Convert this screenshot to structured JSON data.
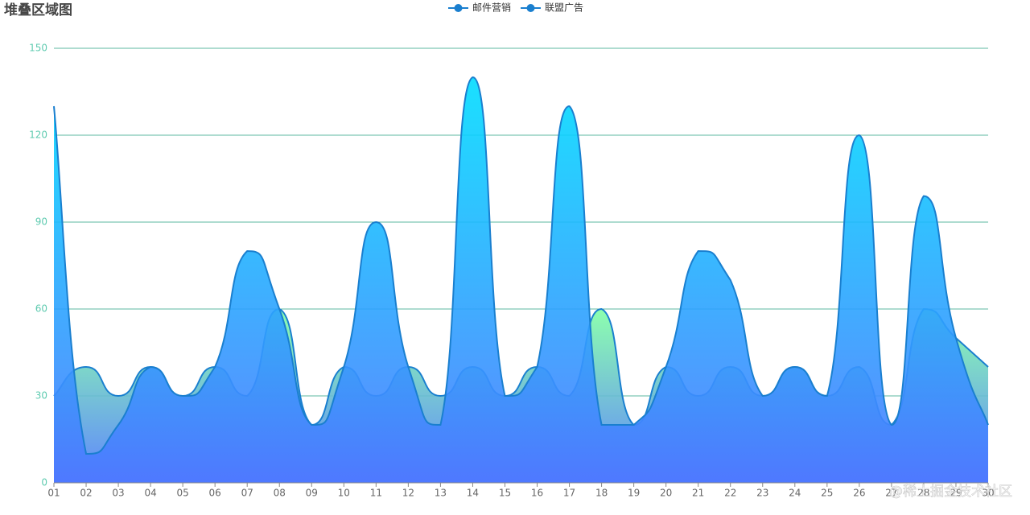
{
  "chart_data": {
    "type": "area",
    "title": "堆叠区域图",
    "categories": [
      "01",
      "02",
      "03",
      "04",
      "05",
      "06",
      "07",
      "08",
      "09",
      "10",
      "11",
      "12",
      "13",
      "14",
      "15",
      "16",
      "17",
      "18",
      "19",
      "20",
      "21",
      "22",
      "23",
      "24",
      "25",
      "26",
      "27",
      "28",
      "29",
      "30"
    ],
    "series": [
      {
        "name": "邮件营销",
        "color": "#1a7fcf",
        "gradient": [
          "#80ffa5",
          "#4d77ff"
        ],
        "values": [
          30,
          40,
          30,
          40,
          30,
          40,
          30,
          60,
          20,
          40,
          30,
          40,
          30,
          40,
          30,
          40,
          30,
          60,
          20,
          40,
          30,
          40,
          30,
          40,
          30,
          40,
          20,
          60,
          50,
          40
        ]
      },
      {
        "name": "联盟广告",
        "color": "#1a7fcf",
        "gradient": [
          "#00ddff",
          "#4d77ff"
        ],
        "values": [
          130,
          10,
          20,
          40,
          30,
          40,
          80,
          60,
          20,
          40,
          90,
          40,
          20,
          140,
          30,
          40,
          130,
          20,
          20,
          40,
          80,
          70,
          30,
          40,
          30,
          120,
          20,
          99,
          50,
          20
        ]
      }
    ],
    "ylim": [
      0,
      150
    ],
    "yticks": [
      0,
      30,
      60,
      90,
      120,
      150
    ],
    "grid": true,
    "watermark": "@稀土掘金技术社区"
  }
}
